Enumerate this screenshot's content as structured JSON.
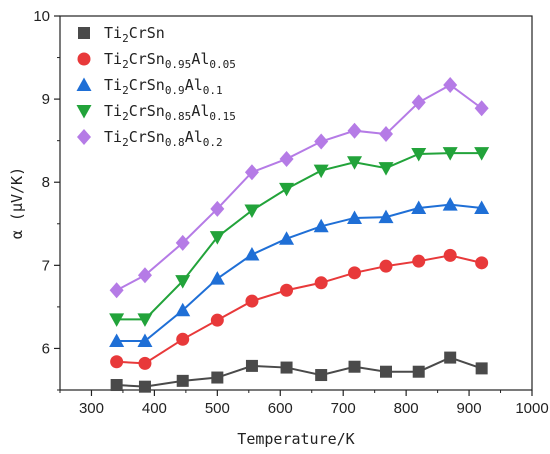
{
  "chart_data": {
    "type": "line",
    "xlabel": "Temperature/K",
    "ylabel": "α (μV/K)",
    "xlim": [
      250,
      1000
    ],
    "ylim": [
      5.5,
      10
    ],
    "xticks": [
      300,
      400,
      500,
      600,
      700,
      800,
      900,
      1000
    ],
    "yticks": [
      6,
      7,
      8,
      9,
      10
    ],
    "legend_position": "top-left",
    "grid": false,
    "x": [
      340,
      385,
      445,
      500,
      555,
      610,
      665,
      718,
      768,
      820,
      870,
      920
    ],
    "series": [
      {
        "name": "Ti2CrSn",
        "name_parts": [
          [
            "Ti",
            false
          ],
          [
            "2",
            true
          ],
          [
            "CrSn",
            false
          ]
        ],
        "marker": "square",
        "color": "#4a4a4a",
        "values": [
          5.56,
          5.54,
          5.61,
          5.65,
          5.79,
          5.77,
          5.68,
          5.78,
          5.72,
          5.72,
          5.89,
          5.76
        ]
      },
      {
        "name": "Ti2CrSn0.95Al0.05",
        "name_parts": [
          [
            "Ti",
            false
          ],
          [
            "2",
            true
          ],
          [
            "CrSn",
            false
          ],
          [
            "0.95",
            true
          ],
          [
            "Al",
            false
          ],
          [
            "0.05",
            true
          ]
        ],
        "marker": "circle",
        "color": "#e8393a",
        "values": [
          5.84,
          5.82,
          6.11,
          6.34,
          6.57,
          6.7,
          6.79,
          6.91,
          6.99,
          7.05,
          7.12,
          7.03
        ]
      },
      {
        "name": "Ti2CrSn0.9Al0.1",
        "name_parts": [
          [
            "Ti",
            false
          ],
          [
            "2",
            true
          ],
          [
            "CrSn",
            false
          ],
          [
            "0.9",
            true
          ],
          [
            "Al",
            false
          ],
          [
            "0.1",
            true
          ]
        ],
        "marker": "triangle-up",
        "color": "#1f6fd6",
        "values": [
          6.09,
          6.09,
          6.46,
          6.84,
          7.13,
          7.32,
          7.47,
          7.57,
          7.58,
          7.69,
          7.73,
          7.69
        ]
      },
      {
        "name": "Ti2CrSn0.85Al0.15",
        "name_parts": [
          [
            "Ti",
            false
          ],
          [
            "2",
            true
          ],
          [
            "CrSn",
            false
          ],
          [
            "0.85",
            true
          ],
          [
            "Al",
            false
          ],
          [
            "0.15",
            true
          ]
        ],
        "marker": "triangle-down",
        "color": "#22a33a",
        "values": [
          6.35,
          6.35,
          6.81,
          7.34,
          7.66,
          7.92,
          8.14,
          8.24,
          8.17,
          8.34,
          8.35,
          8.35
        ]
      },
      {
        "name": "Ti2CrSn0.8Al0.2",
        "name_parts": [
          [
            "Ti",
            false
          ],
          [
            "2",
            true
          ],
          [
            "CrSn",
            false
          ],
          [
            "0.8",
            true
          ],
          [
            "Al",
            false
          ],
          [
            "0.2",
            true
          ]
        ],
        "marker": "diamond",
        "color": "#b57be6",
        "values": [
          6.7,
          6.88,
          7.27,
          7.68,
          8.12,
          8.28,
          8.49,
          8.62,
          8.58,
          8.96,
          9.17,
          8.89
        ]
      }
    ]
  }
}
